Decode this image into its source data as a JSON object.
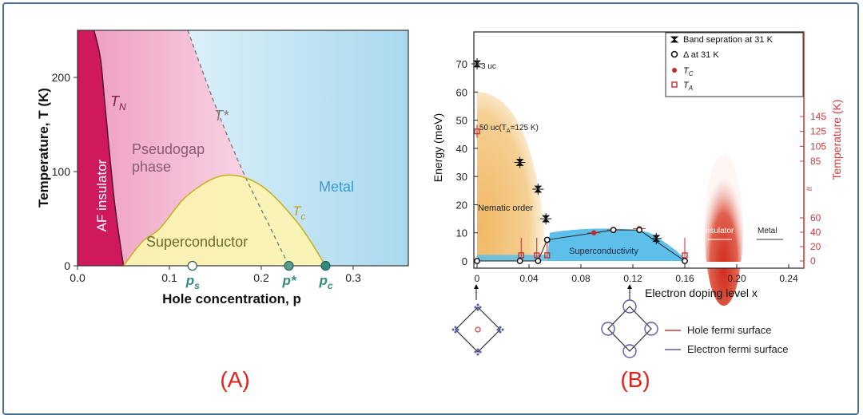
{
  "chart_data": [
    {
      "type": "area",
      "caption": "(A)",
      "xlabel": "Hole concentration, p",
      "ylabel": "Temperature, T (K)",
      "xlim": [
        0.0,
        0.36
      ],
      "ylim": [
        0,
        250
      ],
      "x_ticks": [
        "0.0",
        "0.1",
        "0.2",
        "0.3"
      ],
      "x_tick_values": [
        0.0,
        0.1,
        0.2,
        0.3
      ],
      "y_ticks": [
        "0",
        "100",
        "200"
      ],
      "y_tick_values": [
        0,
        100,
        200
      ],
      "regions": {
        "af": "AF insulator",
        "pg1": "Pseudogap",
        "pg2": "phase",
        "sc": "Superconductor",
        "metal": "Metal"
      },
      "line_labels": {
        "tn": "T",
        "tn_sub": "N",
        "tstar": "T*",
        "tc": "T",
        "tc_sub": "c"
      },
      "special_points": [
        {
          "label": "p",
          "sub": "s",
          "x": 0.125
        },
        {
          "label": "p*",
          "sub": "",
          "x": 0.23
        },
        {
          "label": "p",
          "sub": "c",
          "x": 0.27
        }
      ],
      "tn_curve": {
        "x": [
          0.05,
          0.04,
          0.03,
          0.025,
          0.018
        ],
        "y": [
          0,
          70,
          170,
          220,
          250
        ]
      },
      "tstar_curve": {
        "x": [
          0.12,
          0.15,
          0.18,
          0.21,
          0.23
        ],
        "y": [
          250,
          170,
          100,
          40,
          0
        ]
      },
      "tc_curve": {
        "x": [
          0.05,
          0.07,
          0.09,
          0.12,
          0.16,
          0.2,
          0.24,
          0.27
        ],
        "y": [
          0,
          25,
          40,
          75,
          96,
          85,
          45,
          0
        ]
      },
      "colors": {
        "af": "#d0185c",
        "pseudogap": "#f4b6d0",
        "sc": "#fbf3b2",
        "metal": "#bfe3f2",
        "text_gray": "#7a7a7a",
        "metal_text": "#3a9bd1",
        "tc_text": "#b79f1e",
        "teal": "#2f8c7c"
      }
    },
    {
      "type": "scatter",
      "caption": "(B)",
      "xlabel": "Electron doping level x",
      "ylabel": "Energy (meV)",
      "y2label": "Temperature (K)",
      "xlim": [
        0,
        0.25
      ],
      "ylim": [
        0,
        80
      ],
      "x_ticks": [
        "0",
        "0.04",
        "0.08",
        "0.12",
        "0.16",
        "0.20",
        "0.24"
      ],
      "x_tick_values": [
        0,
        0.04,
        0.08,
        0.12,
        0.16,
        0.2,
        0.24
      ],
      "y_ticks": [
        "0",
        "10",
        "20",
        "30",
        "40",
        "50",
        "60",
        "70"
      ],
      "y_tick_values": [
        0,
        10,
        20,
        30,
        40,
        50,
        60,
        70
      ],
      "y2_ticks_low": [
        "0",
        "20",
        "40",
        "60"
      ],
      "y2_ticks_low_values": [
        0,
        20,
        40,
        60
      ],
      "y2_ticks_high": [
        "85",
        "105",
        "125",
        "145"
      ],
      "y2_ticks_high_values": [
        85,
        105,
        125,
        145
      ],
      "legend": [
        {
          "label": "Band sepration at 31 K",
          "marker": "bowtie"
        },
        {
          "label": "Δ at 31 K",
          "marker": "open-circle"
        },
        {
          "label": "T",
          "sub": "C",
          "marker": "red-dot"
        },
        {
          "label": "T",
          "sub": "A",
          "marker": "red-square"
        }
      ],
      "legend_position": "top-right",
      "series": [
        {
          "name": "Band sepration at 31 K",
          "x": [
            0,
            0.033,
            0.047,
            0.053,
            0.138
          ],
          "y": [
            70,
            35,
            25.5,
            15,
            8
          ]
        },
        {
          "name": "Δ at 31 K",
          "x": [
            0,
            0.033,
            0.047,
            0.054,
            0.105,
            0.125,
            0.16
          ],
          "y": [
            0,
            0,
            0,
            7.5,
            11,
            11,
            0
          ]
        },
        {
          "name": "T_C",
          "x": [
            0.09,
            0.105,
            0.125
          ],
          "y": [
            10,
            11,
            11.5
          ]
        },
        {
          "name": "T_A",
          "x": [
            0,
            0.034,
            0.046,
            0.054,
            0.16
          ],
          "y": [
            46,
            2,
            2,
            2,
            2
          ]
        }
      ],
      "annotations": {
        "uc3": "3 uc",
        "uc50": "50 uc(T",
        "uc50_sub": "A",
        "uc50_end": "=125 K)",
        "nematic": "Nematic order",
        "sc": "Superconductivity",
        "insulator": "Insulator",
        "metal": "Metal",
        "axis_break": "≈"
      },
      "fermi_legend": [
        {
          "label": "Hole fermi surface",
          "color": "#d23a3a"
        },
        {
          "label": "Electron fermi surface",
          "color": "#5c5ca8"
        }
      ],
      "colors": {
        "nematic": "#f1c27d",
        "sc": "#5cc0ea",
        "insulator": "#d33a2c",
        "axis_red": "#d33a3a",
        "dark": "#222222"
      }
    }
  ]
}
